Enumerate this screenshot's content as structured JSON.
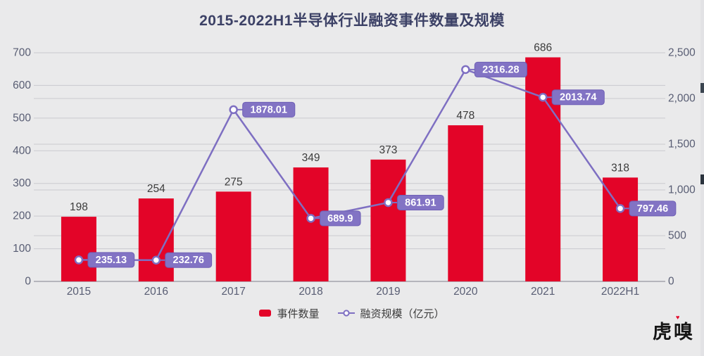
{
  "title": "2015-2022H1半导体行业融资事件数量及规模",
  "watermark": {
    "text": "虎嗅",
    "accent": "♥"
  },
  "colors": {
    "bar": "#e30428",
    "line": "#7e6fc2",
    "marker_fill": "#ffffff",
    "badge_fill": "#8273c4",
    "badge_border": "#6f60b6",
    "grid": "#c9c9cf",
    "axis_line": "#a3a3ac",
    "background": "#eaeaeb"
  },
  "chart_data": {
    "type": "bar",
    "subtype": "combo-bar-line-dual-axis",
    "title": "2015-2022H1半导体行业融资事件数量及规模",
    "categories": [
      "2015",
      "2016",
      "2017",
      "2018",
      "2019",
      "2020",
      "2021",
      "2022H1"
    ],
    "series": [
      {
        "name": "事件数量",
        "type": "bar",
        "axis": "left",
        "values": [
          198,
          254,
          275,
          349,
          373,
          478,
          686,
          318
        ]
      },
      {
        "name": "融资规模（亿元）",
        "type": "line",
        "axis": "right",
        "values": [
          235.13,
          232.76,
          1878.01,
          689.9,
          861.91,
          2316.28,
          2013.74,
          797.46
        ],
        "point_labels": [
          "235.13",
          "232.76",
          "1878.01",
          "689.9",
          "861.91",
          "2316.28",
          "2013.74",
          "797.46"
        ]
      }
    ],
    "left_axis": {
      "min": 0,
      "max": 700,
      "step": 100,
      "tick_labels": [
        "0",
        "100",
        "200",
        "300",
        "400",
        "500",
        "600",
        "700"
      ]
    },
    "right_axis": {
      "min": 0,
      "max": 2500,
      "step": 500,
      "tick_labels": [
        "0",
        "500",
        "1,000",
        "1,500",
        "2,000",
        "2,500"
      ]
    },
    "grid": true,
    "legend_position": "bottom",
    "bar_value_labels": [
      "198",
      "254",
      "275",
      "349",
      "373",
      "478",
      "686",
      "318"
    ]
  }
}
